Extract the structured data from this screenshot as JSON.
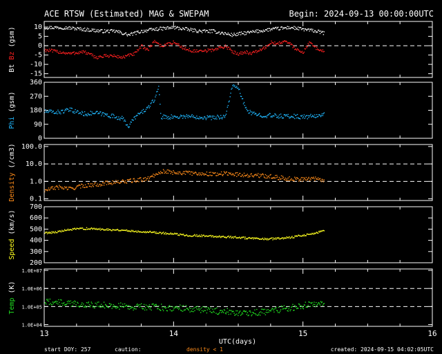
{
  "header": {
    "title": "ACE RTSW (Estimated) MAG & SWEPAM",
    "begin": "Begin: 2024-09-13 00:00:00UTC"
  },
  "footer": {
    "start_doy": "start DOY: 257",
    "caution": "caution:",
    "density_note": "density < 1",
    "created": "created: 2024-09-15 04:02:05UTC"
  },
  "colors": {
    "bt": "#ffffff",
    "bz": "#ff2020",
    "phi": "#20b8ff",
    "density": "#ff8c1a",
    "speed": "#ffff20",
    "temp": "#20e020",
    "frame": "#ffffff",
    "dash": "#ffffff"
  },
  "chart_data": [
    {
      "type": "scatter",
      "panel": "mag",
      "ylabel_a": "Bt",
      "ylabel_b": "Bz",
      "ylabel_unit": "(gsm)",
      "ylim": [
        -17,
        13
      ],
      "yticks": [
        "10",
        "5",
        "0",
        "-5",
        "-10",
        "-15"
      ],
      "ytick_values": [
        10,
        5,
        0,
        -5,
        -10,
        -15
      ],
      "dashed": [
        0
      ],
      "series": [
        {
          "key": "bt",
          "points": [
            [
              13.0,
              10
            ],
            [
              13.15,
              10
            ],
            [
              13.3,
              9
            ],
            [
              13.45,
              8
            ],
            [
              13.55,
              8
            ],
            [
              13.65,
              6
            ],
            [
              13.75,
              8
            ],
            [
              13.85,
              9
            ],
            [
              14.0,
              10
            ],
            [
              14.1,
              9
            ],
            [
              14.2,
              8
            ],
            [
              14.3,
              8
            ],
            [
              14.45,
              6
            ],
            [
              14.55,
              7
            ],
            [
              14.65,
              8
            ],
            [
              14.75,
              9
            ],
            [
              14.9,
              10
            ],
            [
              15.0,
              9
            ],
            [
              15.1,
              8
            ],
            [
              15.16,
              7
            ]
          ]
        },
        {
          "key": "bz",
          "points": [
            [
              13.0,
              -2
            ],
            [
              13.1,
              -3
            ],
            [
              13.2,
              -4
            ],
            [
              13.3,
              -3
            ],
            [
              13.4,
              -6
            ],
            [
              13.5,
              -5
            ],
            [
              13.6,
              -6
            ],
            [
              13.7,
              -4
            ],
            [
              13.75,
              0
            ],
            [
              13.8,
              -2
            ],
            [
              13.85,
              3
            ],
            [
              13.9,
              0
            ],
            [
              14.0,
              2
            ],
            [
              14.1,
              -2
            ],
            [
              14.2,
              -3
            ],
            [
              14.3,
              -2
            ],
            [
              14.4,
              0
            ],
            [
              14.45,
              -3
            ],
            [
              14.5,
              -4
            ],
            [
              14.55,
              -3
            ],
            [
              14.6,
              -4
            ],
            [
              14.7,
              -1
            ],
            [
              14.75,
              2
            ],
            [
              14.8,
              1
            ],
            [
              14.85,
              3
            ],
            [
              14.9,
              1
            ],
            [
              14.95,
              -2
            ],
            [
              15.0,
              -3
            ],
            [
              15.05,
              2
            ],
            [
              15.1,
              -1
            ],
            [
              15.16,
              -3
            ]
          ]
        }
      ]
    },
    {
      "type": "scatter",
      "panel": "phi",
      "ylabel_a": "Phi",
      "ylabel_unit": "(gsm)",
      "ylim": [
        0,
        360
      ],
      "yticks": [
        "360",
        "270",
        "180",
        "90",
        "0"
      ],
      "ytick_values": [
        360,
        270,
        180,
        90,
        0
      ],
      "dashed": [],
      "series": [
        {
          "key": "phi",
          "points": [
            [
              13.0,
              175
            ],
            [
              13.1,
              170
            ],
            [
              13.2,
              185
            ],
            [
              13.3,
              160
            ],
            [
              13.4,
              165
            ],
            [
              13.5,
              150
            ],
            [
              13.6,
              130
            ],
            [
              13.65,
              80
            ],
            [
              13.7,
              140
            ],
            [
              13.8,
              200
            ],
            [
              13.85,
              250
            ],
            [
              13.88,
              340
            ],
            [
              13.9,
              140
            ],
            [
              14.0,
              140
            ],
            [
              14.1,
              145
            ],
            [
              14.2,
              140
            ],
            [
              14.3,
              135
            ],
            [
              14.4,
              145
            ],
            [
              14.45,
              340
            ],
            [
              14.5,
              320
            ],
            [
              14.55,
              200
            ],
            [
              14.6,
              160
            ],
            [
              14.7,
              150
            ],
            [
              14.8,
              145
            ],
            [
              14.9,
              145
            ],
            [
              15.0,
              140
            ],
            [
              15.1,
              145
            ],
            [
              15.16,
              160
            ]
          ]
        }
      ]
    },
    {
      "type": "scatter",
      "panel": "density",
      "scale": "log",
      "ylabel_a": "Density",
      "ylabel_unit": "(/cm3)",
      "ylim": [
        0.08,
        130
      ],
      "yticks": [
        "100.0",
        "10.0",
        "1.0",
        "0.1"
      ],
      "ytick_values": [
        100,
        10,
        1,
        0.1
      ],
      "dashed": [
        10,
        1
      ],
      "series": [
        {
          "key": "density",
          "points": [
            [
              13.0,
              0.3
            ],
            [
              13.1,
              0.5
            ],
            [
              13.2,
              0.4
            ],
            [
              13.3,
              0.6
            ],
            [
              13.4,
              0.7
            ],
            [
              13.5,
              0.9
            ],
            [
              13.6,
              1.0
            ],
            [
              13.7,
              1.2
            ],
            [
              13.8,
              1.5
            ],
            [
              13.85,
              2.5
            ],
            [
              13.9,
              4.0
            ],
            [
              14.0,
              3.5
            ],
            [
              14.1,
              3.2
            ],
            [
              14.2,
              3.0
            ],
            [
              14.3,
              2.8
            ],
            [
              14.4,
              3.0
            ],
            [
              14.5,
              2.6
            ],
            [
              14.6,
              2.4
            ],
            [
              14.7,
              2.2
            ],
            [
              14.8,
              1.8
            ],
            [
              14.9,
              1.5
            ],
            [
              15.0,
              1.4
            ],
            [
              15.1,
              1.6
            ],
            [
              15.16,
              1.2
            ]
          ]
        }
      ]
    },
    {
      "type": "scatter",
      "panel": "speed",
      "ylabel_a": "Speed",
      "ylabel_unit": "(km/s)",
      "ylim": [
        200,
        700
      ],
      "yticks": [
        "700",
        "600",
        "500",
        "400",
        "300",
        "200"
      ],
      "ytick_values": [
        700,
        600,
        500,
        400,
        300,
        200
      ],
      "dashed": [],
      "series": [
        {
          "key": "speed",
          "points": [
            [
              13.0,
              470
            ],
            [
              13.1,
              480
            ],
            [
              13.2,
              500
            ],
            [
              13.3,
              510
            ],
            [
              13.4,
              505
            ],
            [
              13.5,
              500
            ],
            [
              13.6,
              495
            ],
            [
              13.7,
              485
            ],
            [
              13.8,
              480
            ],
            [
              13.9,
              470
            ],
            [
              14.0,
              460
            ],
            [
              14.1,
              450
            ],
            [
              14.2,
              445
            ],
            [
              14.3,
              440
            ],
            [
              14.4,
              435
            ],
            [
              14.5,
              430
            ],
            [
              14.6,
              420
            ],
            [
              14.7,
              415
            ],
            [
              14.8,
              420
            ],
            [
              14.9,
              430
            ],
            [
              15.0,
              450
            ],
            [
              15.1,
              470
            ],
            [
              15.16,
              490
            ]
          ]
        }
      ]
    },
    {
      "type": "scatter",
      "panel": "temp",
      "scale": "log",
      "ylabel_a": "Temp",
      "ylabel_unit": "(K)",
      "ylim": [
        8000,
        12000000
      ],
      "yticks": [
        "1.0E+07",
        "1.0E+06",
        "1.0E+05",
        "1.0E+04"
      ],
      "ytick_values": [
        10000000,
        1000000,
        100000,
        10000
      ],
      "dashed": [
        1000000,
        100000
      ],
      "series": [
        {
          "key": "temp",
          "points": [
            [
              13.0,
              200000
            ],
            [
              13.1,
              180000
            ],
            [
              13.2,
              150000
            ],
            [
              13.3,
              140000
            ],
            [
              13.4,
              130000
            ],
            [
              13.5,
              120000
            ],
            [
              13.6,
              110000
            ],
            [
              13.7,
              100000
            ],
            [
              13.8,
              100000
            ],
            [
              13.9,
              95000
            ],
            [
              14.0,
              90000
            ],
            [
              14.1,
              80000
            ],
            [
              14.2,
              70000
            ],
            [
              14.3,
              60000
            ],
            [
              14.4,
              55000
            ],
            [
              14.5,
              50000
            ],
            [
              14.6,
              45000
            ],
            [
              14.7,
              55000
            ],
            [
              14.8,
              70000
            ],
            [
              14.9,
              90000
            ],
            [
              15.0,
              120000
            ],
            [
              15.1,
              150000
            ],
            [
              15.16,
              180000
            ]
          ]
        }
      ]
    }
  ],
  "xaxis": {
    "label": "UTC(days)",
    "xlim": [
      13,
      16
    ],
    "ticks": [
      "13",
      "14",
      "15",
      "16"
    ],
    "tick_values": [
      13,
      14,
      15,
      16
    ]
  }
}
